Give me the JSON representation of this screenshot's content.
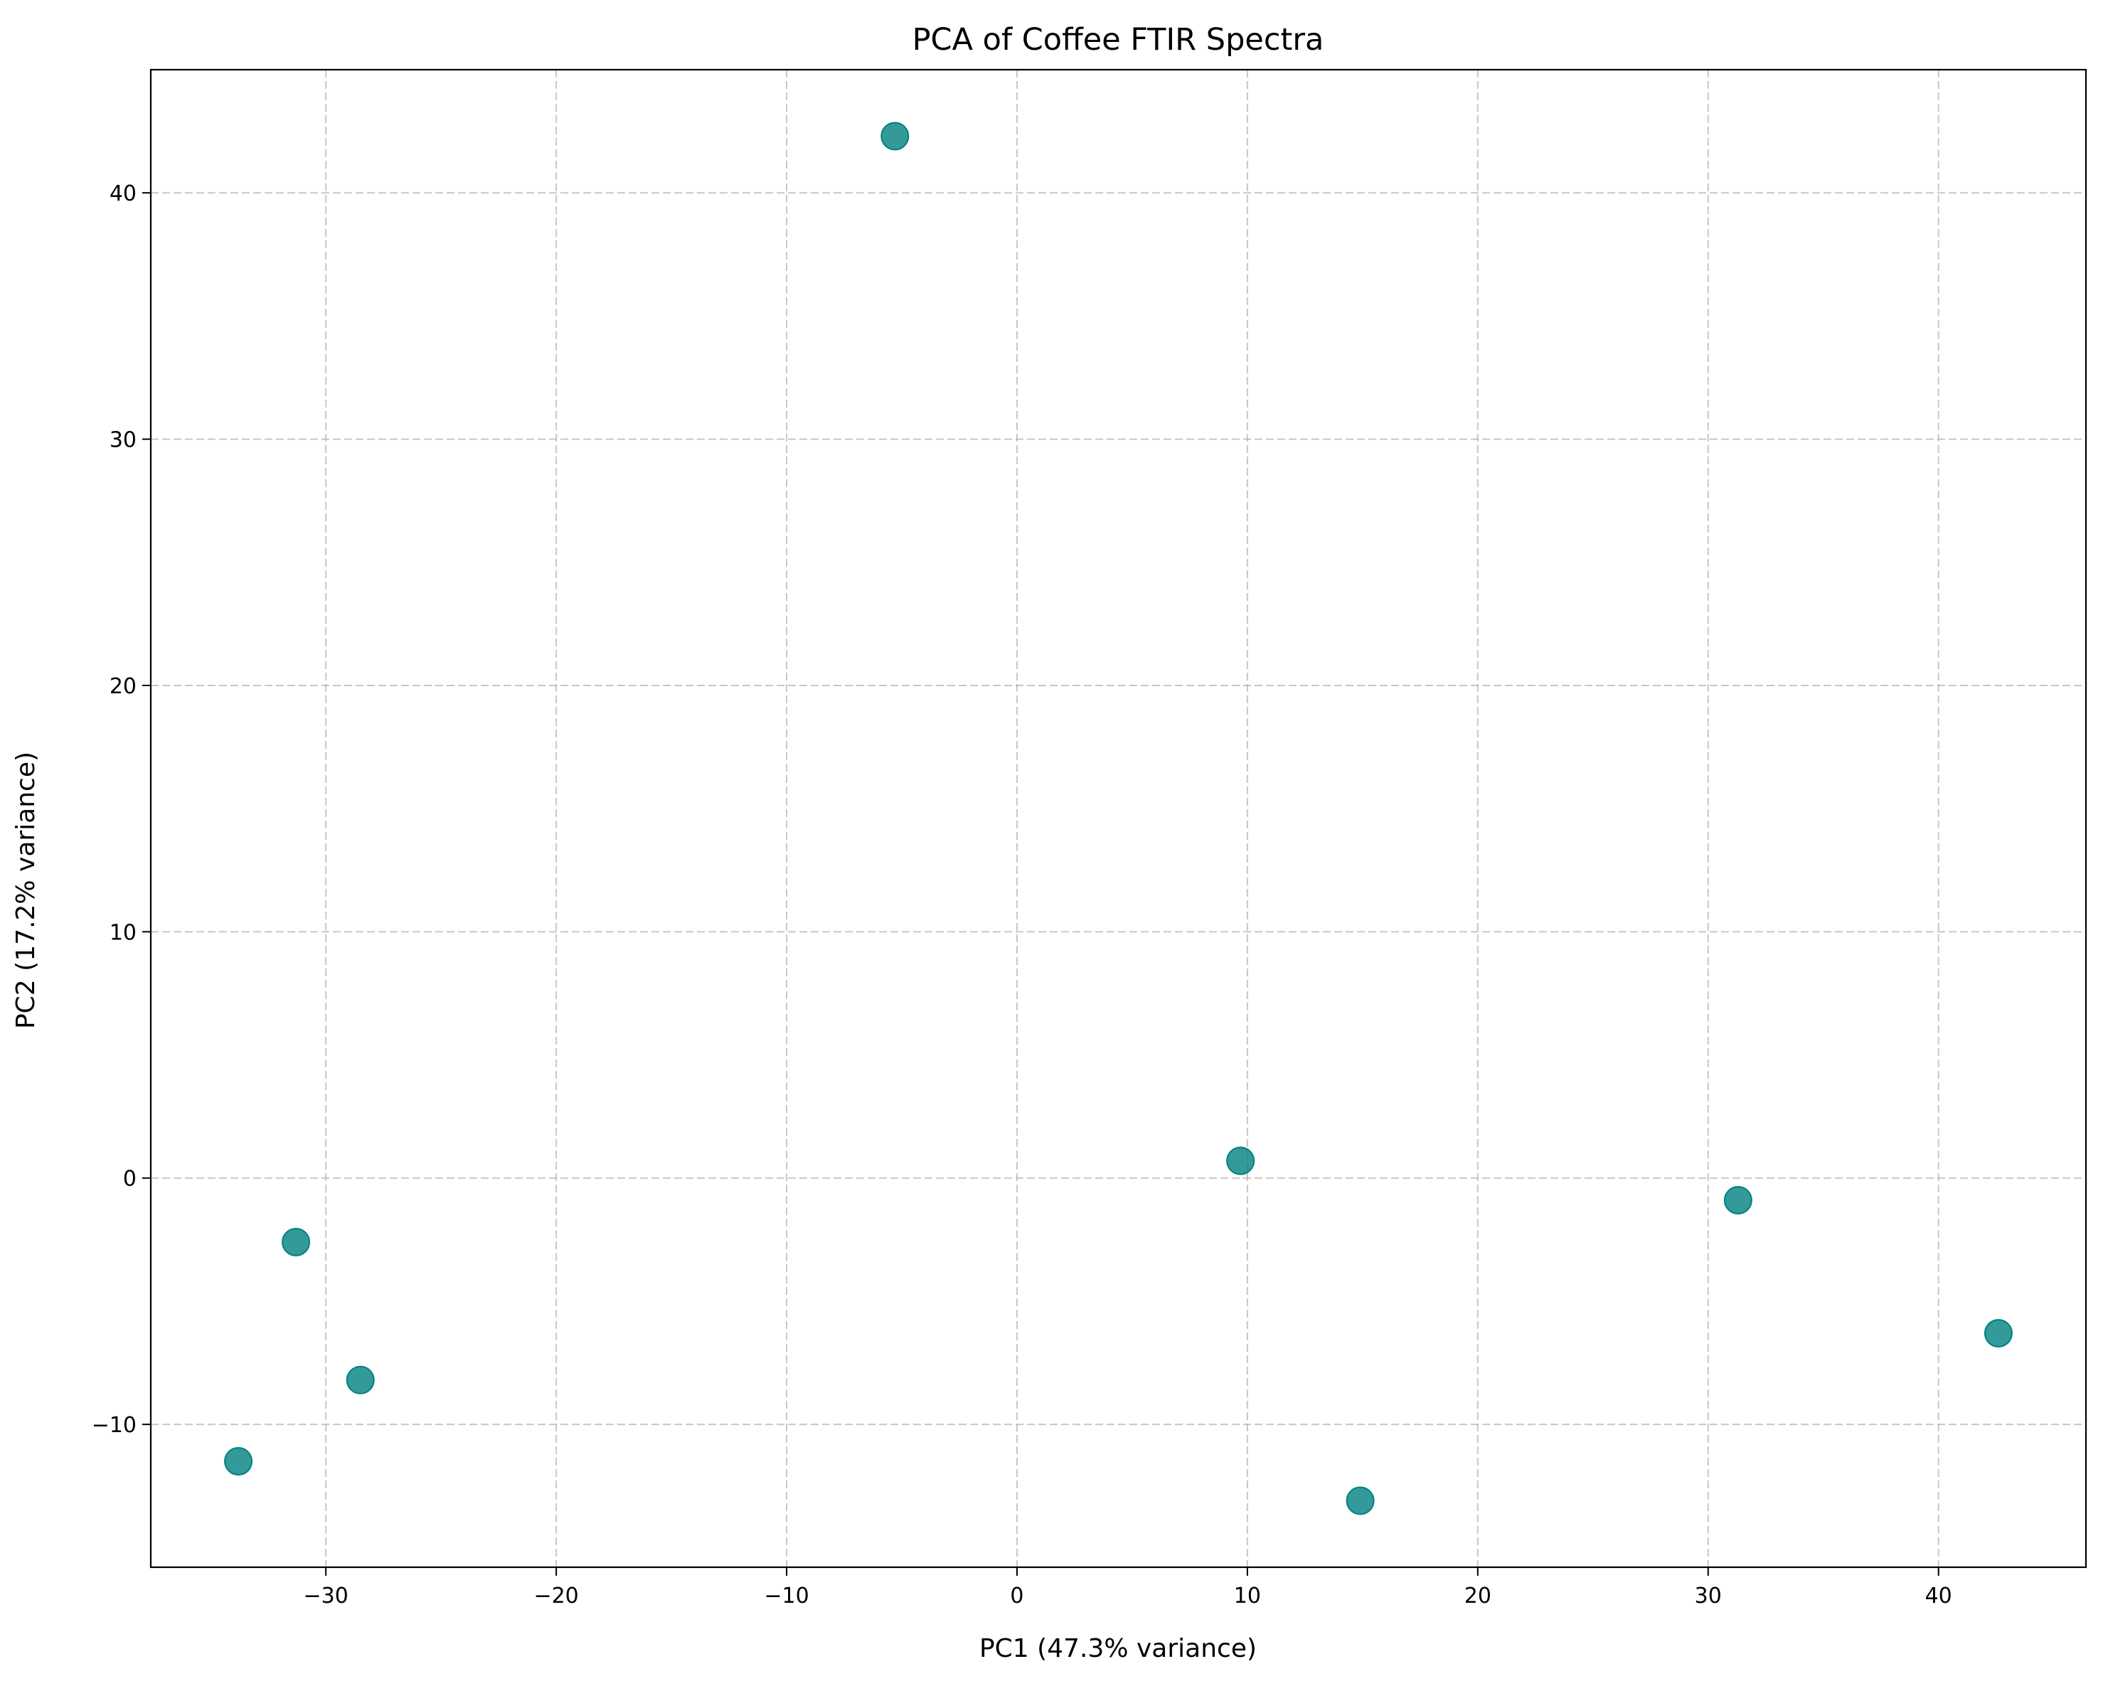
{
  "chart_data": {
    "type": "scatter",
    "title": "PCA of Coffee FTIR Spectra",
    "xlabel": "PC1 (47.3% variance)",
    "ylabel": "PC2 (17.2% variance)",
    "xlim": [
      -37.6,
      46.4
    ],
    "ylim": [
      -15.8,
      45.0
    ],
    "x_ticks": [
      -30,
      -20,
      -10,
      0,
      10,
      20,
      30,
      40
    ],
    "x_tick_labels": [
      "−30",
      "−20",
      "−10",
      "0",
      "10",
      "20",
      "30",
      "40"
    ],
    "y_ticks": [
      -10,
      0,
      10,
      20,
      30,
      40
    ],
    "y_tick_labels": [
      "−10",
      "0",
      "10",
      "20",
      "30",
      "40"
    ],
    "grid": true,
    "legend": "none",
    "marker_color": "#008080",
    "marker_opacity": 0.8,
    "points": [
      {
        "x": -5.3,
        "y": 42.3
      },
      {
        "x": 9.7,
        "y": 0.7
      },
      {
        "x": 31.3,
        "y": -0.9
      },
      {
        "x": 42.6,
        "y": -6.3
      },
      {
        "x": -31.3,
        "y": -2.6
      },
      {
        "x": -28.5,
        "y": -8.2
      },
      {
        "x": -33.8,
        "y": -11.5
      },
      {
        "x": 14.9,
        "y": -13.1
      }
    ]
  }
}
